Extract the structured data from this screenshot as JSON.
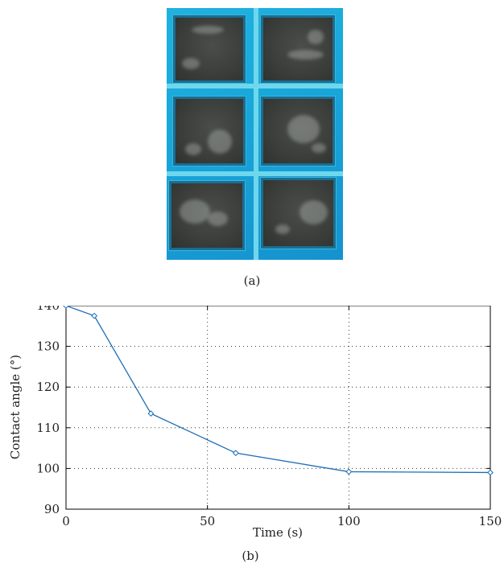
{
  "figure": {
    "caption_a": "(a)",
    "caption_b": "(b)"
  },
  "chart_data": {
    "type": "line",
    "xlabel": "Time (s)",
    "ylabel": "Contact angle (°)",
    "xlim": [
      0,
      150
    ],
    "ylim": [
      90,
      140
    ],
    "x_ticks": [
      0,
      50,
      100,
      150
    ],
    "y_ticks": [
      90,
      100,
      110,
      120,
      130,
      140
    ],
    "grid": true,
    "marker": "diamond",
    "color": "#1f6fb5",
    "series": [
      {
        "x": [
          0,
          10,
          30,
          60,
          100,
          150
        ],
        "y": [
          140,
          137.5,
          113.5,
          103.8,
          99.2,
          99.0
        ]
      }
    ]
  }
}
